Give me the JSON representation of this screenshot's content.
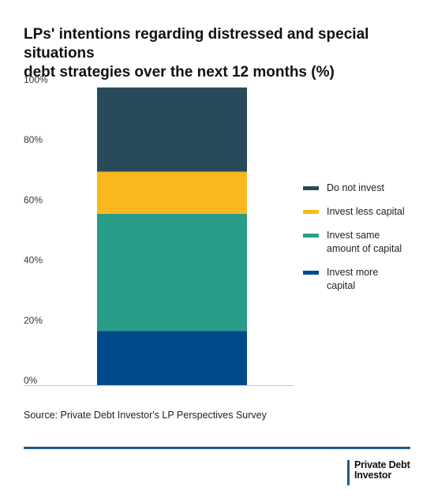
{
  "title_lines": [
    "LPs' intentions regarding distressed and special situations",
    "debt strategies over the next 12 months (%)"
  ],
  "source": "Source: Private Debt Investor's LP Perspectives Survey",
  "logo": {
    "line1": "Private Debt",
    "line2": "Investor"
  },
  "colors": {
    "do_not_invest": "#284b5c",
    "invest_less": "#fab81e",
    "invest_same": "#2a9c8a",
    "invest_more": "#004a8c",
    "rule": "#1f5a8c"
  },
  "chart_data": {
    "type": "bar",
    "stacked": true,
    "categories": [
      ""
    ],
    "series": [
      {
        "name": "Invest more capital",
        "values": [
          18
        ],
        "color": "#004a8c"
      },
      {
        "name": "Invest same amount of capital",
        "values": [
          39
        ],
        "color": "#2a9c8a"
      },
      {
        "name": "Invest less capital",
        "values": [
          14
        ],
        "color": "#fab81e"
      },
      {
        "name": "Do not invest",
        "values": [
          28
        ],
        "color": "#284b5c"
      }
    ],
    "y_ticks": [
      "0%",
      "20%",
      "40%",
      "60%",
      "80%",
      "100%"
    ],
    "ylim": [
      0,
      100
    ],
    "legend": [
      "Do not invest",
      "Invest less capital",
      "Invest same amount of capital",
      "Invest more capital"
    ],
    "legend_position": "right",
    "grid": false
  }
}
